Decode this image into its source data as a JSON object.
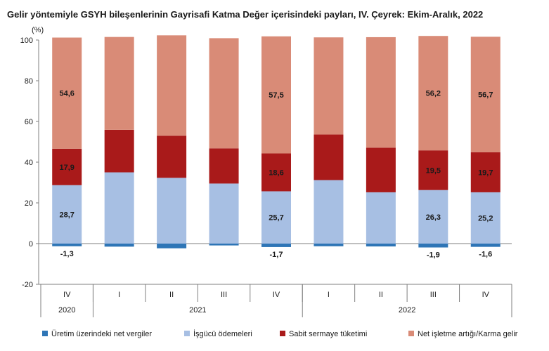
{
  "title": "Gelir yöntemiyle GSYH bileşenlerinin Gayrisafi Katma Değer içerisindeki payları, IV. Çeyrek: Ekim-Aralık, 2022",
  "chart_data": {
    "type": "bar",
    "stacked": true,
    "title": "Gelir yöntemiyle GSYH bileşenlerinin Gayrisafi Katma Değer içerisindeki payları, IV. Çeyrek: Ekim-Aralık, 2022",
    "ylabel": "(%)",
    "ylim": [
      -20,
      100
    ],
    "yticks": [
      -20,
      0,
      20,
      40,
      60,
      80,
      100
    ],
    "grid": false,
    "legend_position": "bottom",
    "categories": [
      "IV",
      "I",
      "II",
      "III",
      "IV",
      "I",
      "II",
      "III",
      "IV"
    ],
    "year_groups": [
      {
        "label": "2020",
        "span": 1
      },
      {
        "label": "2021",
        "span": 4
      },
      {
        "label": "2022",
        "span": 4
      }
    ],
    "series": [
      {
        "name": "Üretim üzerindeki net vergiler",
        "color": "#2e75b6",
        "values": [
          -1.3,
          -1.5,
          -2.3,
          -0.9,
          -1.7,
          -1.3,
          -1.4,
          -1.9,
          -1.6
        ],
        "labels": [
          "-1,3",
          "",
          "",
          "",
          "-1,7",
          "",
          "",
          "-1,9",
          "-1,6"
        ]
      },
      {
        "name": "İşgücü ödemeleri",
        "color": "#a7bfe3",
        "values": [
          28.7,
          35.0,
          32.3,
          29.5,
          25.7,
          31.2,
          25.2,
          26.3,
          25.2
        ],
        "labels": [
          "28,7",
          "",
          "",
          "",
          "25,7",
          "",
          "",
          "26,3",
          "25,2"
        ]
      },
      {
        "name": "Sabit sermaye tüketimi",
        "color": "#a91a1a",
        "values": [
          17.9,
          20.9,
          20.7,
          17.3,
          18.6,
          22.4,
          21.9,
          19.5,
          19.7
        ],
        "labels": [
          "17,9",
          "",
          "",
          "",
          "18,6",
          "",
          "",
          "19,5",
          "19,7"
        ]
      },
      {
        "name": "Net işletme artığı/Karma gelir",
        "color": "#d98b77",
        "values": [
          54.6,
          45.6,
          49.3,
          54.1,
          57.5,
          47.7,
          54.3,
          56.2,
          56.7
        ],
        "labels": [
          "54,6",
          "",
          "",
          "",
          "57,5",
          "",
          "",
          "56,2",
          "56,7"
        ]
      }
    ]
  }
}
